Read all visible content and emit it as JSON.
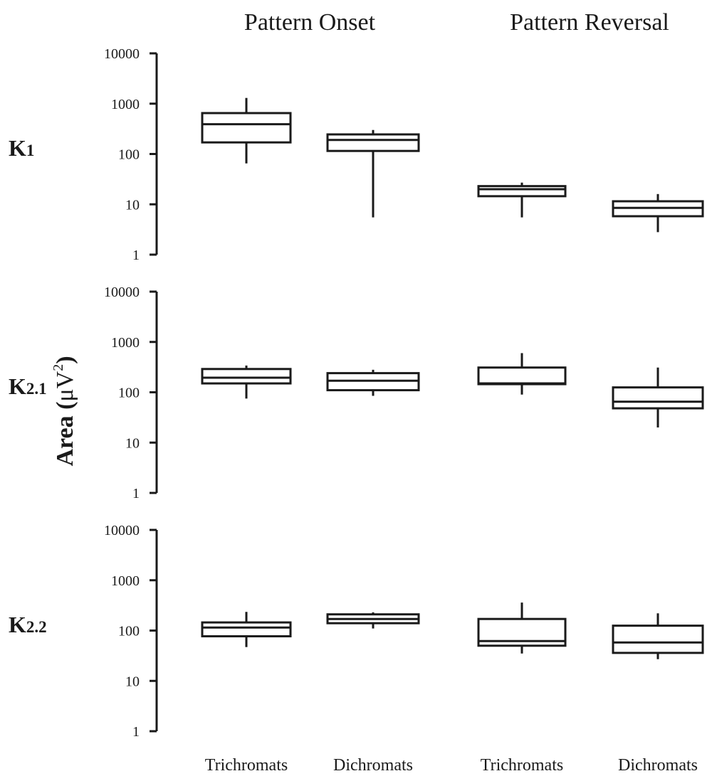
{
  "column_titles": [
    "Pattern Onset",
    "Pattern Reversal"
  ],
  "group_labels": [
    "Trichromats",
    "Dichromats",
    "Trichromats",
    "Dichromats"
  ],
  "ylabel": {
    "main": "Area (",
    "mu": "μV",
    "sup": "2",
    "close": ")"
  },
  "rows": [
    {
      "label_main": "K",
      "label_sub": "1"
    },
    {
      "label_main": "K",
      "label_sub": "2.1"
    },
    {
      "label_main": "K",
      "label_sub": "2.2"
    }
  ],
  "chart_data": {
    "type": "box",
    "scale": "log",
    "ylim": [
      1,
      10000
    ],
    "yticks": [
      "10000",
      "1000",
      "100",
      "10",
      "1"
    ],
    "panels": [
      {
        "row": "K1",
        "boxes": [
          {
            "group": "Pattern Onset - Trichromats",
            "min": 65,
            "q1": 170,
            "median": 390,
            "q3": 650,
            "max": 1300
          },
          {
            "group": "Pattern Onset - Dichromats",
            "min": 5.5,
            "q1": 115,
            "median": 190,
            "q3": 245,
            "max": 300
          },
          {
            "group": "Pattern Reversal - Trichromats",
            "min": 5.5,
            "q1": 14.5,
            "median": 20,
            "q3": 23,
            "max": 27
          },
          {
            "group": "Pattern Reversal - Dichromats",
            "min": 2.8,
            "q1": 5.8,
            "median": 8.5,
            "q3": 11.5,
            "max": 16
          }
        ]
      },
      {
        "row": "K2.1",
        "boxes": [
          {
            "group": "Pattern Onset - Trichromats",
            "min": 75,
            "q1": 150,
            "median": 195,
            "q3": 290,
            "max": 340
          },
          {
            "group": "Pattern Onset - Dichromats",
            "min": 85,
            "q1": 110,
            "median": 170,
            "q3": 240,
            "max": 280
          },
          {
            "group": "Pattern Reversal - Trichromats",
            "min": 90,
            "q1": 145,
            "median": 150,
            "q3": 310,
            "max": 600
          },
          {
            "group": "Pattern Reversal - Dichromats",
            "min": 20,
            "q1": 48,
            "median": 65,
            "q3": 125,
            "max": 310
          }
        ]
      },
      {
        "row": "K2.2",
        "boxes": [
          {
            "group": "Pattern Onset - Trichromats",
            "min": 47,
            "q1": 77,
            "median": 115,
            "q3": 145,
            "max": 235
          },
          {
            "group": "Pattern Onset - Dichromats",
            "min": 110,
            "q1": 140,
            "median": 170,
            "q3": 210,
            "max": 230
          },
          {
            "group": "Pattern Reversal - Trichromats",
            "min": 35,
            "q1": 50,
            "median": 62,
            "q3": 170,
            "max": 360
          },
          {
            "group": "Pattern Reversal - Dichromats",
            "min": 27,
            "q1": 36,
            "median": 58,
            "q3": 125,
            "max": 220
          }
        ]
      }
    ]
  }
}
